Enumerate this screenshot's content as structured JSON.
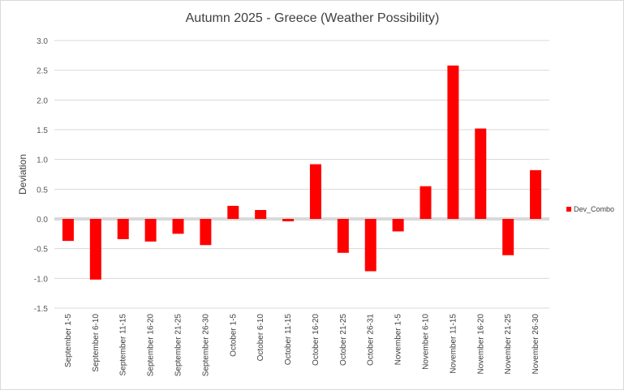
{
  "chart_data": {
    "type": "bar",
    "title": "Autumn 2025 - Greece (Weather Possibility)",
    "xlabel": "",
    "ylabel": "Deviation",
    "ylim": [
      -1.5,
      3.0
    ],
    "yticks": [
      3.0,
      2.5,
      2.0,
      1.5,
      1.0,
      0.5,
      0.0,
      -0.5,
      -1.0,
      -1.5
    ],
    "ytick_labels": [
      "3.0",
      "2.5",
      "2.0",
      "1.5",
      "1.0",
      "0.5",
      "0.0",
      "-0.5",
      "-1.0",
      "-1.5"
    ],
    "grid": true,
    "legend_position": "right",
    "categories": [
      "September 1-5",
      "September 6-10",
      "September 11-15",
      "September 16-20",
      "September 21-25",
      "September 26-30",
      "October 1-5",
      "October 6-10",
      "October 11-15",
      "October 16-20",
      "October 21-25",
      "October 26-31",
      "November 1-5",
      "November 6-10",
      "November 11-15",
      "November 16-20",
      "November 21-25",
      "November 26-30"
    ],
    "series": [
      {
        "name": "Dev_Combo",
        "color": "#ff0000",
        "values": [
          -0.37,
          -1.02,
          -0.34,
          -0.38,
          -0.25,
          -0.44,
          0.22,
          0.15,
          -0.04,
          0.92,
          -0.57,
          -0.88,
          -0.21,
          0.55,
          2.58,
          1.52,
          -0.61,
          0.82
        ]
      }
    ]
  }
}
